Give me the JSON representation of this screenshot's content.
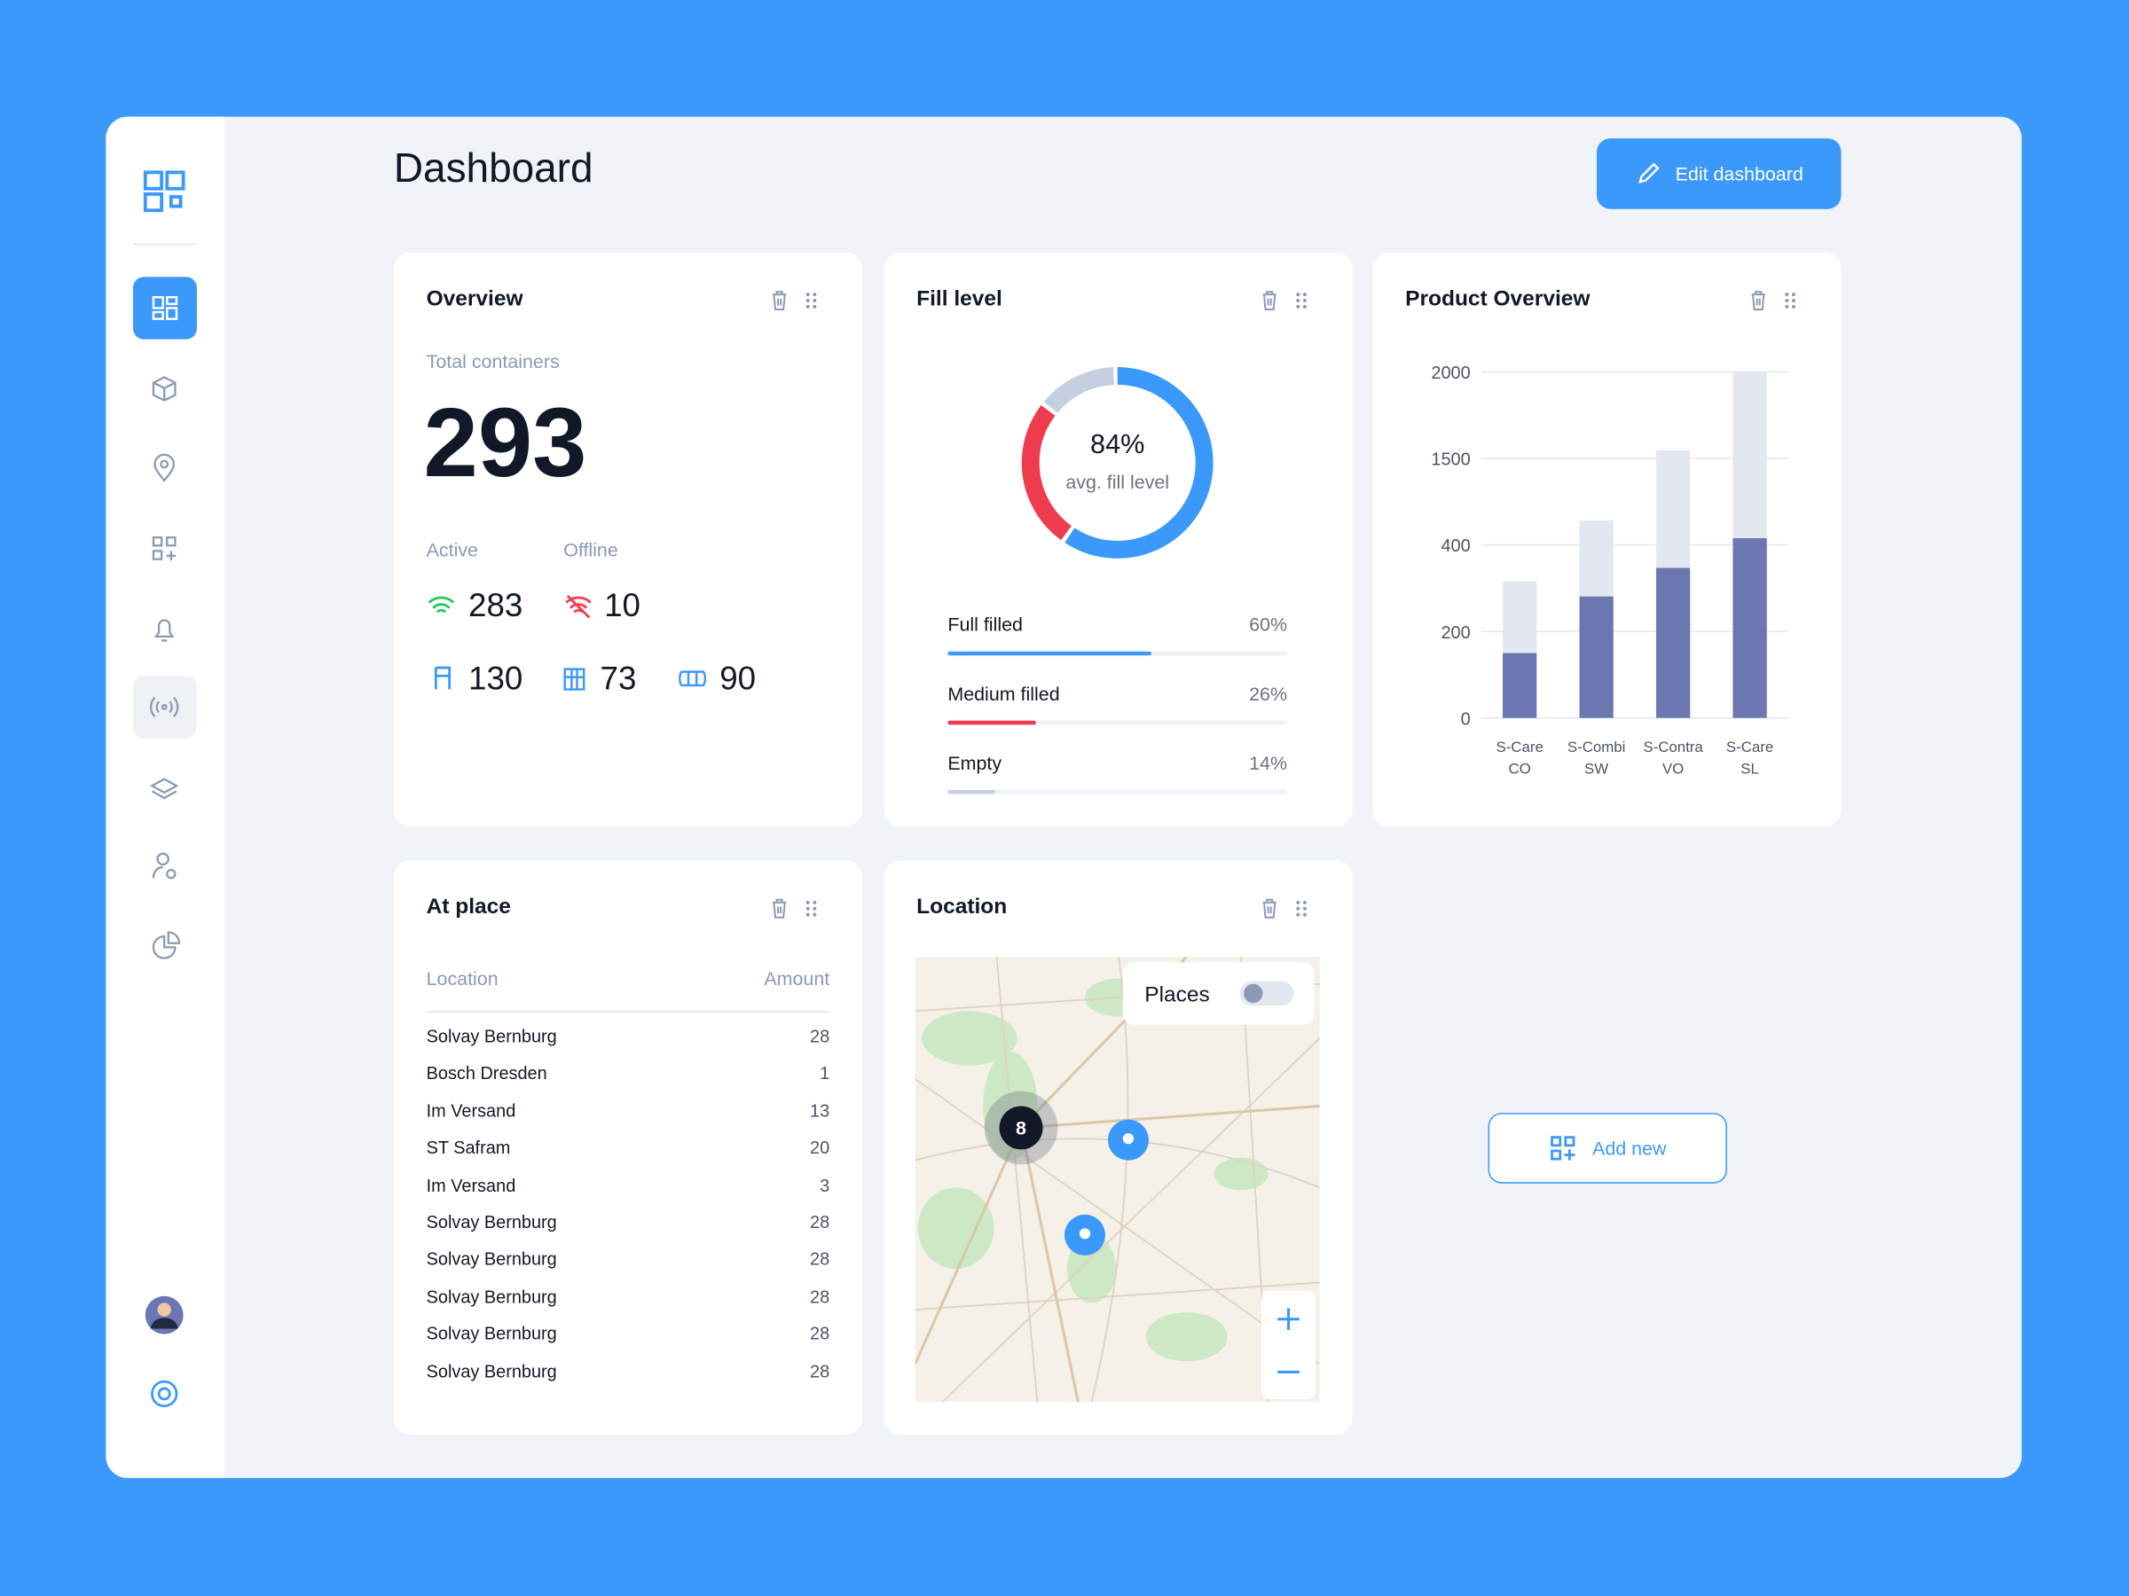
{
  "header": {
    "title": "Dashboard",
    "button": "Edit dashboard"
  },
  "overview": {
    "title": "Overview",
    "total_label": "Total containers",
    "total": 293,
    "active_label": "Active",
    "active": 283,
    "offline_label": "Offline",
    "offline": 10,
    "counts": [
      130,
      73,
      90
    ]
  },
  "fill_level": {
    "title": "Fill level",
    "center_text": "84%",
    "center_label": "avg. fill level",
    "chart_data": {
      "type": "donut",
      "categories": [
        "Full filled",
        "Medium filled",
        "Empty"
      ],
      "values": [
        60,
        26,
        14
      ],
      "value_labels": [
        "60%",
        "26%",
        "14%"
      ],
      "colors": [
        "#3b99fc",
        "#ef3b4e",
        "#c5cfe0"
      ]
    }
  },
  "product_overview": {
    "title": "Product Overview",
    "chart_data": {
      "type": "bar",
      "stacked": true,
      "categories": [
        "S-Care CO",
        "S-Combi SW",
        "S-Contra VO",
        "S-Care SL"
      ],
      "series": [
        {
          "color": "#6b77b0",
          "values": [
            150,
            281,
            347,
            486
          ]
        },
        {
          "color": "#e3e7f0",
          "values": [
            165,
            428,
            1200,
            1514
          ]
        }
      ],
      "ylim": [
        0,
        2000
      ],
      "yticks": [
        0,
        200,
        400,
        1500,
        2000
      ],
      "grid": true
    }
  },
  "at_place": {
    "title": "At place",
    "columns": [
      "Location",
      "Amount"
    ],
    "rows": [
      [
        "Solvay Bernburg",
        28
      ],
      [
        "Bosch Dresden",
        1
      ],
      [
        "Im Versand",
        13
      ],
      [
        "ST Safram",
        20
      ],
      [
        "Im Versand",
        3
      ],
      [
        "Solvay Bernburg",
        28
      ],
      [
        "Solvay Bernburg",
        28
      ],
      [
        "Solvay Bernburg",
        28
      ],
      [
        "Solvay Bernburg",
        28
      ],
      [
        "Solvay Bernburg",
        28
      ]
    ]
  },
  "location": {
    "title": "Location",
    "toggle": "Places",
    "cluster": 8
  },
  "add_new": "Add new"
}
